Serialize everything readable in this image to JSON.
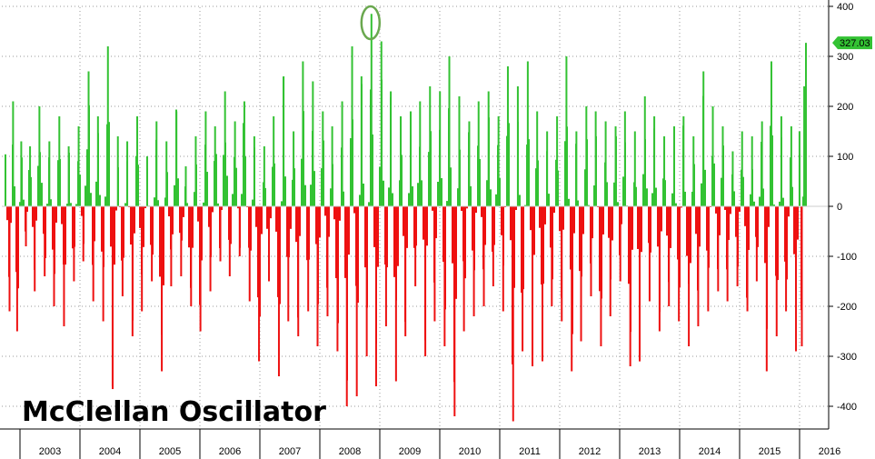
{
  "chart_data": {
    "type": "bar",
    "title": "McClellan Oscillator",
    "xlabel": "",
    "ylabel": "",
    "x_range": [
      2002.5,
      2016.17
    ],
    "ylim": [
      -440,
      410
    ],
    "yticks": [
      400,
      300,
      200,
      100,
      0,
      -100,
      -200,
      -300,
      -400
    ],
    "ytick_labels": [
      "400",
      "300",
      "200",
      "100",
      "0",
      "-100",
      "-200",
      "-300",
      "-400"
    ],
    "year_labels": [
      "2003",
      "2004",
      "2005",
      "2006",
      "2007",
      "2008",
      "2009",
      "2010",
      "2011",
      "2012",
      "2013",
      "2014",
      "2015",
      "2016"
    ],
    "grid": true,
    "colors": {
      "positive": "#33c233",
      "negative": "#ee1111",
      "highlight_marker": "#6aa84f",
      "last_value_badge": "#33c233"
    },
    "last_value": {
      "label": "327.03",
      "y": 327.03
    },
    "highlight": {
      "x": 2008.75,
      "y": 385
    },
    "points": [
      [
        2002.5,
        100
      ],
      [
        2002.57,
        -210
      ],
      [
        2002.63,
        210
      ],
      [
        2002.7,
        -250
      ],
      [
        2002.77,
        130
      ],
      [
        2002.85,
        -80
      ],
      [
        2002.92,
        120
      ],
      [
        2003.0,
        -170
      ],
      [
        2003.08,
        200
      ],
      [
        2003.17,
        -140
      ],
      [
        2003.25,
        130
      ],
      [
        2003.33,
        -200
      ],
      [
        2003.42,
        180
      ],
      [
        2003.5,
        -240
      ],
      [
        2003.58,
        120
      ],
      [
        2003.67,
        -150
      ],
      [
        2003.75,
        160
      ],
      [
        2003.83,
        -110
      ],
      [
        2003.92,
        270
      ],
      [
        2004.0,
        -190
      ],
      [
        2004.08,
        180
      ],
      [
        2004.17,
        -230
      ],
      [
        2004.25,
        320
      ],
      [
        2004.33,
        -360
      ],
      [
        2004.42,
        140
      ],
      [
        2004.5,
        -180
      ],
      [
        2004.58,
        130
      ],
      [
        2004.67,
        -260
      ],
      [
        2004.75,
        180
      ],
      [
        2004.83,
        -210
      ],
      [
        2004.92,
        100
      ],
      [
        2005.0,
        -150
      ],
      [
        2005.08,
        170
      ],
      [
        2005.17,
        -330
      ],
      [
        2005.25,
        130
      ],
      [
        2005.33,
        -160
      ],
      [
        2005.42,
        190
      ],
      [
        2005.5,
        -140
      ],
      [
        2005.58,
        80
      ],
      [
        2005.67,
        -200
      ],
      [
        2005.75,
        140
      ],
      [
        2005.83,
        -250
      ],
      [
        2005.92,
        190
      ],
      [
        2006.0,
        -170
      ],
      [
        2006.08,
        160
      ],
      [
        2006.17,
        -110
      ],
      [
        2006.25,
        230
      ],
      [
        2006.33,
        -140
      ],
      [
        2006.42,
        170
      ],
      [
        2006.5,
        -100
      ],
      [
        2006.58,
        210
      ],
      [
        2006.67,
        -190
      ],
      [
        2006.75,
        140
      ],
      [
        2006.83,
        -310
      ],
      [
        2006.92,
        120
      ],
      [
        2007.0,
        -150
      ],
      [
        2007.08,
        180
      ],
      [
        2007.17,
        -340
      ],
      [
        2007.25,
        260
      ],
      [
        2007.33,
        -230
      ],
      [
        2007.42,
        150
      ],
      [
        2007.5,
        -260
      ],
      [
        2007.58,
        290
      ],
      [
        2007.67,
        -210
      ],
      [
        2007.75,
        250
      ],
      [
        2007.83,
        -280
      ],
      [
        2007.92,
        190
      ],
      [
        2008.0,
        -220
      ],
      [
        2008.08,
        160
      ],
      [
        2008.17,
        -290
      ],
      [
        2008.25,
        210
      ],
      [
        2008.33,
        -400
      ],
      [
        2008.42,
        320
      ],
      [
        2008.5,
        -380
      ],
      [
        2008.58,
        260
      ],
      [
        2008.67,
        -300
      ],
      [
        2008.75,
        385
      ],
      [
        2008.83,
        -360
      ],
      [
        2008.92,
        330
      ],
      [
        2009.0,
        -240
      ],
      [
        2009.08,
        230
      ],
      [
        2009.17,
        -350
      ],
      [
        2009.25,
        180
      ],
      [
        2009.33,
        -260
      ],
      [
        2009.42,
        190
      ],
      [
        2009.5,
        -160
      ],
      [
        2009.58,
        210
      ],
      [
        2009.67,
        -300
      ],
      [
        2009.75,
        240
      ],
      [
        2009.83,
        -230
      ],
      [
        2009.92,
        230
      ],
      [
        2010.0,
        -280
      ],
      [
        2010.08,
        300
      ],
      [
        2010.17,
        -420
      ],
      [
        2010.25,
        220
      ],
      [
        2010.33,
        -250
      ],
      [
        2010.42,
        170
      ],
      [
        2010.5,
        -220
      ],
      [
        2010.58,
        210
      ],
      [
        2010.67,
        -200
      ],
      [
        2010.75,
        230
      ],
      [
        2010.83,
        -160
      ],
      [
        2010.92,
        180
      ],
      [
        2011.0,
        -210
      ],
      [
        2011.08,
        280
      ],
      [
        2011.17,
        -430
      ],
      [
        2011.25,
        240
      ],
      [
        2011.33,
        -290
      ],
      [
        2011.42,
        290
      ],
      [
        2011.5,
        -320
      ],
      [
        2011.58,
        190
      ],
      [
        2011.67,
        -310
      ],
      [
        2011.75,
        150
      ],
      [
        2011.83,
        -200
      ],
      [
        2011.92,
        180
      ],
      [
        2012.0,
        -230
      ],
      [
        2012.08,
        300
      ],
      [
        2012.17,
        -330
      ],
      [
        2012.25,
        150
      ],
      [
        2012.33,
        -270
      ],
      [
        2012.42,
        200
      ],
      [
        2012.5,
        -180
      ],
      [
        2012.58,
        190
      ],
      [
        2012.67,
        -280
      ],
      [
        2012.75,
        170
      ],
      [
        2012.83,
        -220
      ],
      [
        2012.92,
        160
      ],
      [
        2013.0,
        -150
      ],
      [
        2013.08,
        190
      ],
      [
        2013.17,
        -320
      ],
      [
        2013.25,
        150
      ],
      [
        2013.33,
        -300
      ],
      [
        2013.42,
        220
      ],
      [
        2013.5,
        -190
      ],
      [
        2013.58,
        180
      ],
      [
        2013.67,
        -250
      ],
      [
        2013.75,
        140
      ],
      [
        2013.83,
        -200
      ],
      [
        2013.92,
        160
      ],
      [
        2014.0,
        -230
      ],
      [
        2014.08,
        180
      ],
      [
        2014.17,
        -280
      ],
      [
        2014.25,
        140
      ],
      [
        2014.33,
        -240
      ],
      [
        2014.42,
        270
      ],
      [
        2014.5,
        -210
      ],
      [
        2014.58,
        200
      ],
      [
        2014.67,
        -170
      ],
      [
        2014.75,
        160
      ],
      [
        2014.83,
        -190
      ],
      [
        2014.92,
        110
      ],
      [
        2015.0,
        -160
      ],
      [
        2015.08,
        150
      ],
      [
        2015.17,
        -210
      ],
      [
        2015.25,
        140
      ],
      [
        2015.33,
        -150
      ],
      [
        2015.42,
        170
      ],
      [
        2015.5,
        -330
      ],
      [
        2015.58,
        290
      ],
      [
        2015.67,
        -260
      ],
      [
        2015.75,
        180
      ],
      [
        2015.83,
        -210
      ],
      [
        2015.92,
        160
      ],
      [
        2016.0,
        -290
      ],
      [
        2016.06,
        150
      ],
      [
        2016.1,
        -280
      ],
      [
        2016.14,
        240
      ],
      [
        2016.17,
        327.03
      ]
    ]
  }
}
